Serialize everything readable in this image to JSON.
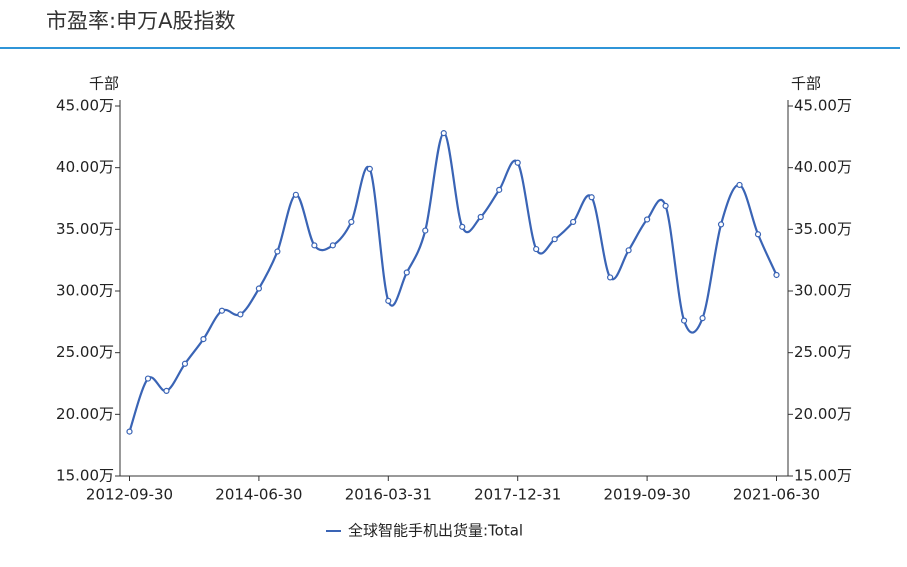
{
  "chart_data": {
    "type": "line",
    "title": "市盈率:申万A股指数",
    "ylabel": "千部",
    "y2label": "千部",
    "categories": [
      "2012-09-30",
      null,
      null,
      null,
      null,
      null,
      null,
      "2014-06-30",
      null,
      null,
      null,
      null,
      null,
      null,
      "2016-03-31",
      null,
      null,
      null,
      null,
      null,
      null,
      "2017-12-31",
      null,
      null,
      null,
      null,
      null,
      null,
      "2019-09-30",
      null,
      null,
      null,
      null,
      null,
      null,
      "2021-06-30"
    ],
    "series": [
      {
        "name": "全球智能手机出货量:Total",
        "color": "#3a64b5",
        "values": [
          18.6,
          22.9,
          21.9,
          24.1,
          26.1,
          28.4,
          28.1,
          30.2,
          33.2,
          37.8,
          33.7,
          33.7,
          35.6,
          39.9,
          29.2,
          31.5,
          34.9,
          42.8,
          35.2,
          36.0,
          38.2,
          40.4,
          33.4,
          34.2,
          35.6,
          37.6,
          31.1,
          33.3,
          35.8,
          36.9,
          27.6,
          27.8,
          35.4,
          38.6,
          34.6,
          31.3
        ]
      }
    ],
    "ylim": [
      15,
      45
    ],
    "yticks": [
      {
        "value": 15,
        "label": "15.00万"
      },
      {
        "value": 20,
        "label": "20.00万"
      },
      {
        "value": 25,
        "label": "25.00万"
      },
      {
        "value": 30,
        "label": "30.00万"
      },
      {
        "value": 35,
        "label": "35.00万"
      },
      {
        "value": 40,
        "label": "40.00万"
      },
      {
        "value": 45,
        "label": "45.00万"
      }
    ],
    "y2lim": [
      15,
      45
    ],
    "y2ticks": [
      {
        "value": 15,
        "label": "15.00万"
      },
      {
        "value": 20,
        "label": "20.00万"
      },
      {
        "value": 25,
        "label": "25.00万"
      },
      {
        "value": 30,
        "label": "30.00万"
      },
      {
        "value": 35,
        "label": "35.00万"
      },
      {
        "value": 40,
        "label": "40.00万"
      },
      {
        "value": 45,
        "label": "45.00万"
      }
    ],
    "smooth": true
  }
}
